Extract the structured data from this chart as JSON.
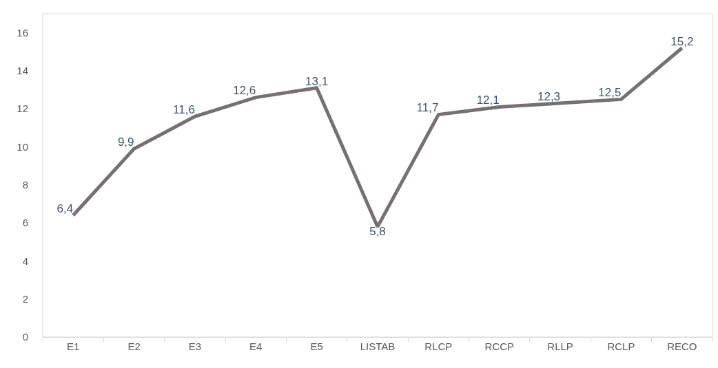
{
  "chart_data": {
    "type": "line",
    "categories": [
      "E1",
      "E2",
      "E3",
      "E4",
      "E5",
      "LISTAB",
      "RLCP",
      "RCCP",
      "RLLP",
      "RCLP",
      "RECO"
    ],
    "series": [
      {
        "color": "#767171",
        "values": [
          6.4,
          9.9,
          11.6,
          12.6,
          13.1,
          5.8,
          11.7,
          12.1,
          12.3,
          12.5,
          15.2
        ],
        "value_labels": [
          "6,4",
          "9,9",
          "11,6",
          "12,6",
          "13,1",
          "5,8",
          "11,7",
          "12,1",
          "12,3",
          "12,5",
          "15,2"
        ]
      }
    ],
    "ylim": [
      0,
      17
    ],
    "yticks": [
      0,
      2,
      4,
      6,
      8,
      10,
      12,
      14,
      16
    ],
    "grid": false,
    "marker": "none",
    "line_style": "solid"
  }
}
